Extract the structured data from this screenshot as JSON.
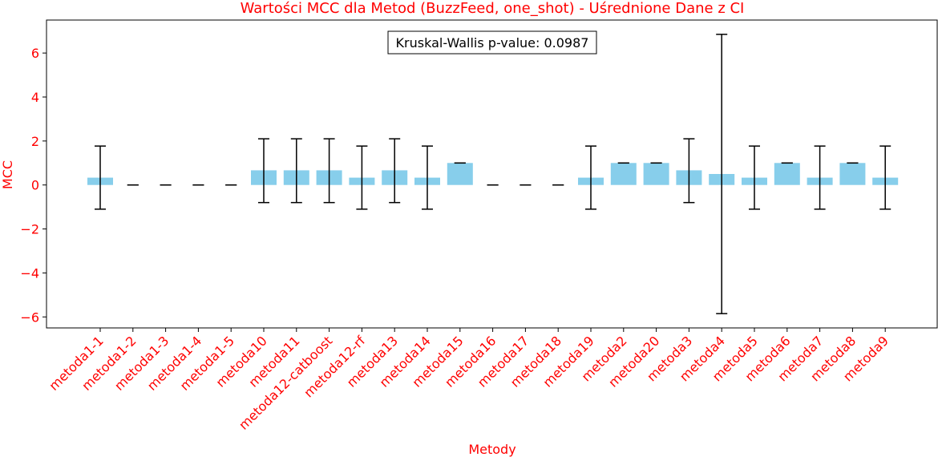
{
  "chart_data": {
    "type": "bar",
    "title": "Wartości MCC dla Metod (BuzzFeed, one_shot) - Uśrednione Dane z CI",
    "xlabel": "Metody",
    "ylabel": "MCC",
    "ylim": [
      -6.5,
      7.5
    ],
    "yticks": [
      -6,
      -4,
      -2,
      0,
      2,
      4,
      6
    ],
    "ytick_labels": [
      "−6",
      "−4",
      "−2",
      "0",
      "2",
      "4",
      "6"
    ],
    "grid": false,
    "annotation": "Kruskal-Wallis p-value: 0.0987",
    "categories": [
      "metoda1-1",
      "metoda1-2",
      "metoda1-3",
      "metoda1-4",
      "metoda1-5",
      "metoda10",
      "metoda11",
      "metoda12-catboost",
      "metoda12-rf",
      "metoda13",
      "metoda14",
      "metoda15",
      "metoda16",
      "metoda17",
      "metoda18",
      "metoda19",
      "metoda2",
      "metoda20",
      "metoda3",
      "metoda4",
      "metoda5",
      "metoda6",
      "metoda7",
      "metoda8",
      "metoda9"
    ],
    "values": [
      0.333,
      0,
      0,
      0,
      0,
      0.667,
      0.667,
      0.667,
      0.333,
      0.667,
      0.333,
      1.0,
      0,
      0,
      0,
      0.333,
      1.0,
      1.0,
      0.667,
      0.5,
      0.333,
      1.0,
      0.333,
      1.0,
      0.333
    ],
    "ci_lower": [
      -1.1,
      0,
      0,
      0,
      0,
      -0.8,
      -0.8,
      -0.8,
      -1.1,
      -0.8,
      -1.1,
      1.0,
      0,
      0,
      0,
      -1.1,
      1.0,
      1.0,
      -0.8,
      -5.85,
      -1.1,
      1.0,
      -1.1,
      1.0,
      -1.1
    ],
    "ci_upper": [
      1.77,
      0,
      0,
      0,
      0,
      2.1,
      2.1,
      2.1,
      1.77,
      2.1,
      1.77,
      1.0,
      0,
      0,
      0,
      1.77,
      1.0,
      1.0,
      2.1,
      6.85,
      1.77,
      1.0,
      1.77,
      1.0,
      1.77
    ],
    "bar_color": "#87ceeb",
    "error_color": "#000000",
    "label_color": "#ff0000"
  }
}
